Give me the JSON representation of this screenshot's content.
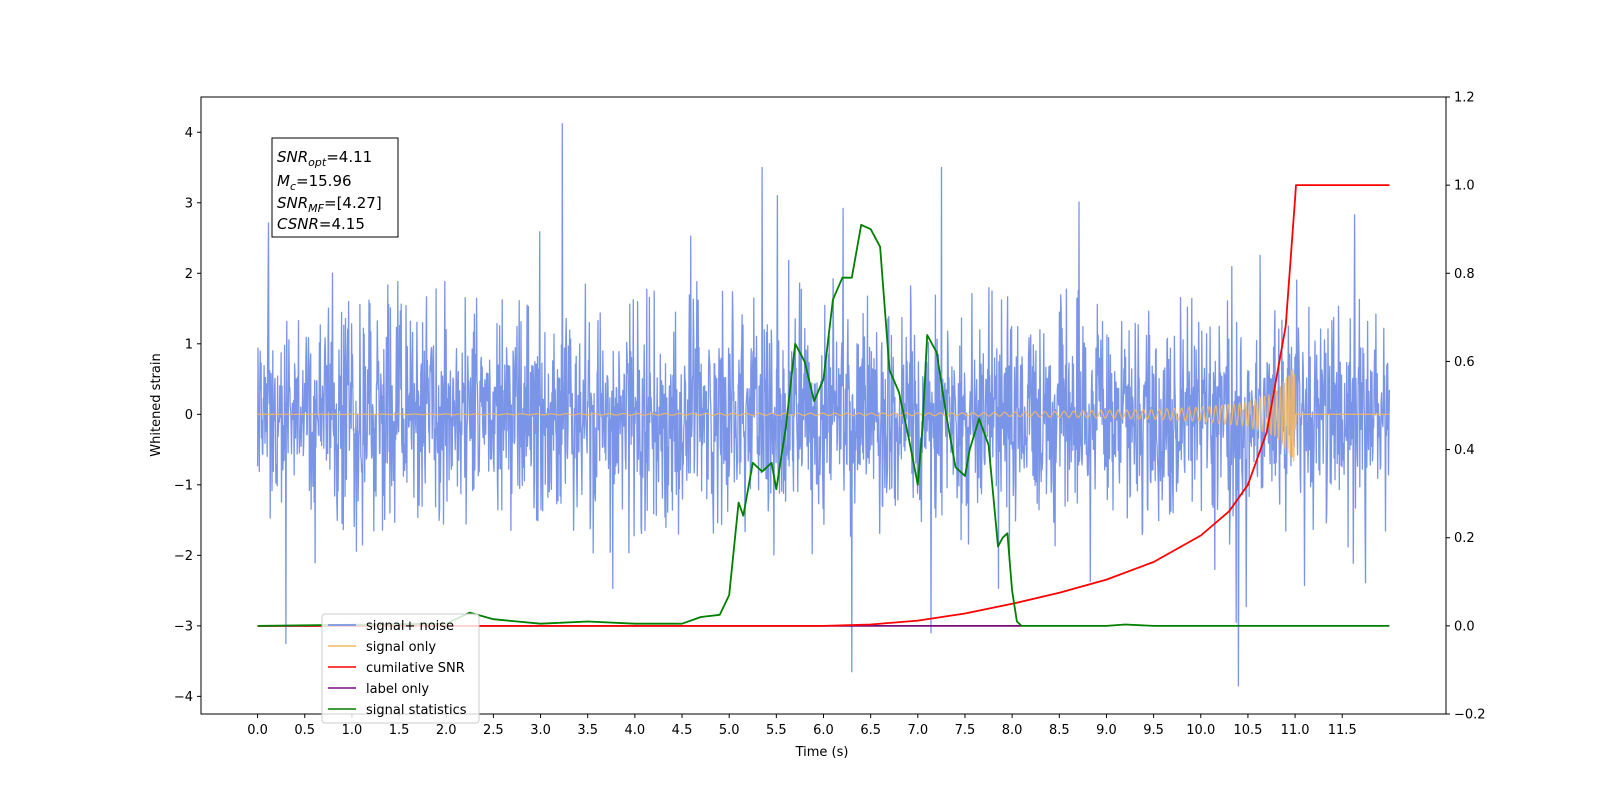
{
  "chart_data": {
    "type": "line",
    "title": "",
    "xlabel": "Time (s)",
    "ylabel": "Whitened strain",
    "xlim": [
      -0.6,
      12.6
    ],
    "ylim": [
      -4.25,
      4.5
    ],
    "y2lim": [
      -0.2,
      1.2
    ],
    "xticks": [
      "0.0",
      "0.5",
      "1.0",
      "1.5",
      "2.0",
      "2.5",
      "3.0",
      "3.5",
      "4.0",
      "4.5",
      "5.0",
      "5.5",
      "6.0",
      "6.5",
      "7.0",
      "7.5",
      "8.0",
      "8.5",
      "9.0",
      "9.5",
      "10.0",
      "10.5",
      "11.0",
      "11.5"
    ],
    "yticks": [
      "4",
      "3",
      "2",
      "1",
      "0",
      "−1",
      "−2",
      "−3",
      "−4"
    ],
    "y2ticks": [
      "1.2",
      "1.0",
      "0.8",
      "0.6",
      "0.4",
      "0.2",
      "0.0",
      "−0.2"
    ],
    "grid": false,
    "legend_position": "lower-left",
    "annotation": {
      "snr_opt": "=4.11",
      "mc": "=15.96",
      "snr_mf": "=[4.27]",
      "csnr": "=4.15"
    },
    "series": [
      {
        "name": "signal+ noise",
        "axis": "left",
        "color": "#6b8ae6",
        "kind": "noise",
        "x_range": [
          0.0,
          12.0
        ],
        "typical_std": 1.0,
        "max": 4.12,
        "min": -3.85,
        "notable_extremes": [
          {
            "x": 3.23,
            "y": 4.12
          },
          {
            "x": 10.4,
            "y": -3.85
          },
          {
            "x": 6.3,
            "y": -3.65
          },
          {
            "x": 0.3,
            "y": -3.25
          },
          {
            "x": 7.25,
            "y": 3.5
          },
          {
            "x": 5.35,
            "y": 3.5
          }
        ]
      },
      {
        "name": "signal only",
        "axis": "left",
        "color": "#f5b860",
        "kind": "chirp",
        "x": [
          0.0,
          7.5,
          8.5,
          9.5,
          10.0,
          10.5,
          10.8,
          10.95,
          11.0,
          11.02,
          12.0
        ],
        "envelope": [
          0.0,
          0.02,
          0.04,
          0.07,
          0.1,
          0.17,
          0.32,
          0.6,
          0.78,
          0.0,
          0.0
        ]
      },
      {
        "name": "cumilative SNR",
        "axis": "right",
        "color": "#ff0000",
        "x": [
          0.0,
          6.0,
          6.5,
          7.0,
          7.5,
          8.0,
          8.5,
          9.0,
          9.5,
          10.0,
          10.3,
          10.5,
          10.7,
          10.9,
          11.0,
          11.01,
          12.0
        ],
        "values": [
          0.0,
          0.0,
          0.003,
          0.012,
          0.028,
          0.05,
          0.075,
          0.105,
          0.145,
          0.205,
          0.26,
          0.32,
          0.44,
          0.68,
          0.97,
          1.0,
          1.0
        ]
      },
      {
        "name": "label only",
        "axis": "right",
        "color": "#7a0a7a",
        "x": [
          0.0,
          8.1
        ],
        "values": [
          0.0,
          0.0
        ]
      },
      {
        "name": "signal statistics",
        "axis": "right",
        "color": "#007f00",
        "x": [
          0.0,
          2.0,
          2.25,
          2.5,
          3.0,
          3.5,
          4.0,
          4.5,
          4.7,
          4.9,
          5.0,
          5.1,
          5.15,
          5.25,
          5.35,
          5.45,
          5.5,
          5.6,
          5.7,
          5.8,
          5.9,
          6.0,
          6.1,
          6.2,
          6.3,
          6.4,
          6.5,
          6.6,
          6.7,
          6.8,
          6.9,
          7.0,
          7.05,
          7.1,
          7.2,
          7.3,
          7.4,
          7.5,
          7.55,
          7.65,
          7.75,
          7.85,
          7.9,
          7.95,
          8.0,
          8.05,
          8.1,
          8.2,
          8.5,
          9.0,
          9.2,
          9.5,
          12.0
        ],
        "values": [
          0.0,
          0.005,
          0.03,
          0.015,
          0.005,
          0.01,
          0.005,
          0.005,
          0.02,
          0.025,
          0.07,
          0.28,
          0.25,
          0.37,
          0.35,
          0.37,
          0.31,
          0.45,
          0.64,
          0.6,
          0.51,
          0.56,
          0.74,
          0.79,
          0.79,
          0.91,
          0.9,
          0.86,
          0.58,
          0.53,
          0.43,
          0.32,
          0.45,
          0.66,
          0.62,
          0.48,
          0.36,
          0.34,
          0.4,
          0.47,
          0.41,
          0.18,
          0.2,
          0.21,
          0.08,
          0.01,
          0.0,
          0.0,
          0.0,
          0.0,
          0.003,
          0.0,
          0.0
        ]
      }
    ]
  }
}
